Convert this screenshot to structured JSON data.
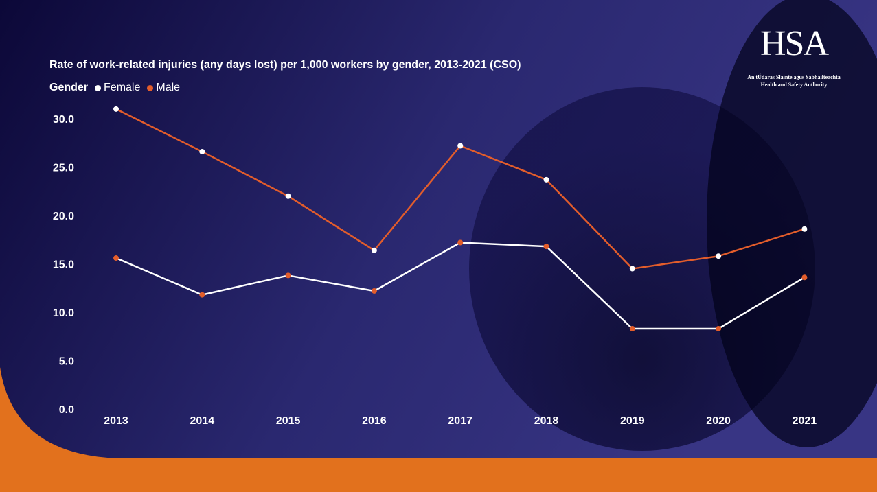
{
  "colors": {
    "background_dark": "#0c0838",
    "background_mid": "#2a2870",
    "background_light": "#383584",
    "accent_orange": "#e2711d",
    "female": "#ffffff",
    "male": "#e35d2b"
  },
  "logo": {
    "mark": "HSA",
    "line1": "An tÚdarás Sláinte agus Sábháilteachta",
    "line2": "Health and Safety Authority"
  },
  "chart_data": {
    "type": "line",
    "title": "Rate of work-related injuries (any days lost) per 1,000 workers by gender, 2013-2021 (CSO)",
    "legend_title": "Gender",
    "categories": [
      "2013",
      "2014",
      "2015",
      "2016",
      "2017",
      "2018",
      "2019",
      "2020",
      "2021"
    ],
    "series": [
      {
        "name": "Female",
        "color": "#ffffff",
        "values": [
          15.6,
          11.8,
          13.8,
          12.2,
          17.2,
          16.8,
          8.3,
          8.3,
          13.6
        ]
      },
      {
        "name": "Male",
        "color": "#e35d2b",
        "values": [
          31.0,
          26.6,
          22.0,
          16.4,
          27.2,
          23.7,
          14.5,
          15.8,
          18.6
        ]
      }
    ],
    "y_ticks": [
      "0.0",
      "5.0",
      "10.0",
      "15.0",
      "20.0",
      "25.0",
      "30.0"
    ],
    "ylim": [
      0,
      30
    ],
    "xlabel": "",
    "ylabel": "",
    "grid": false
  }
}
